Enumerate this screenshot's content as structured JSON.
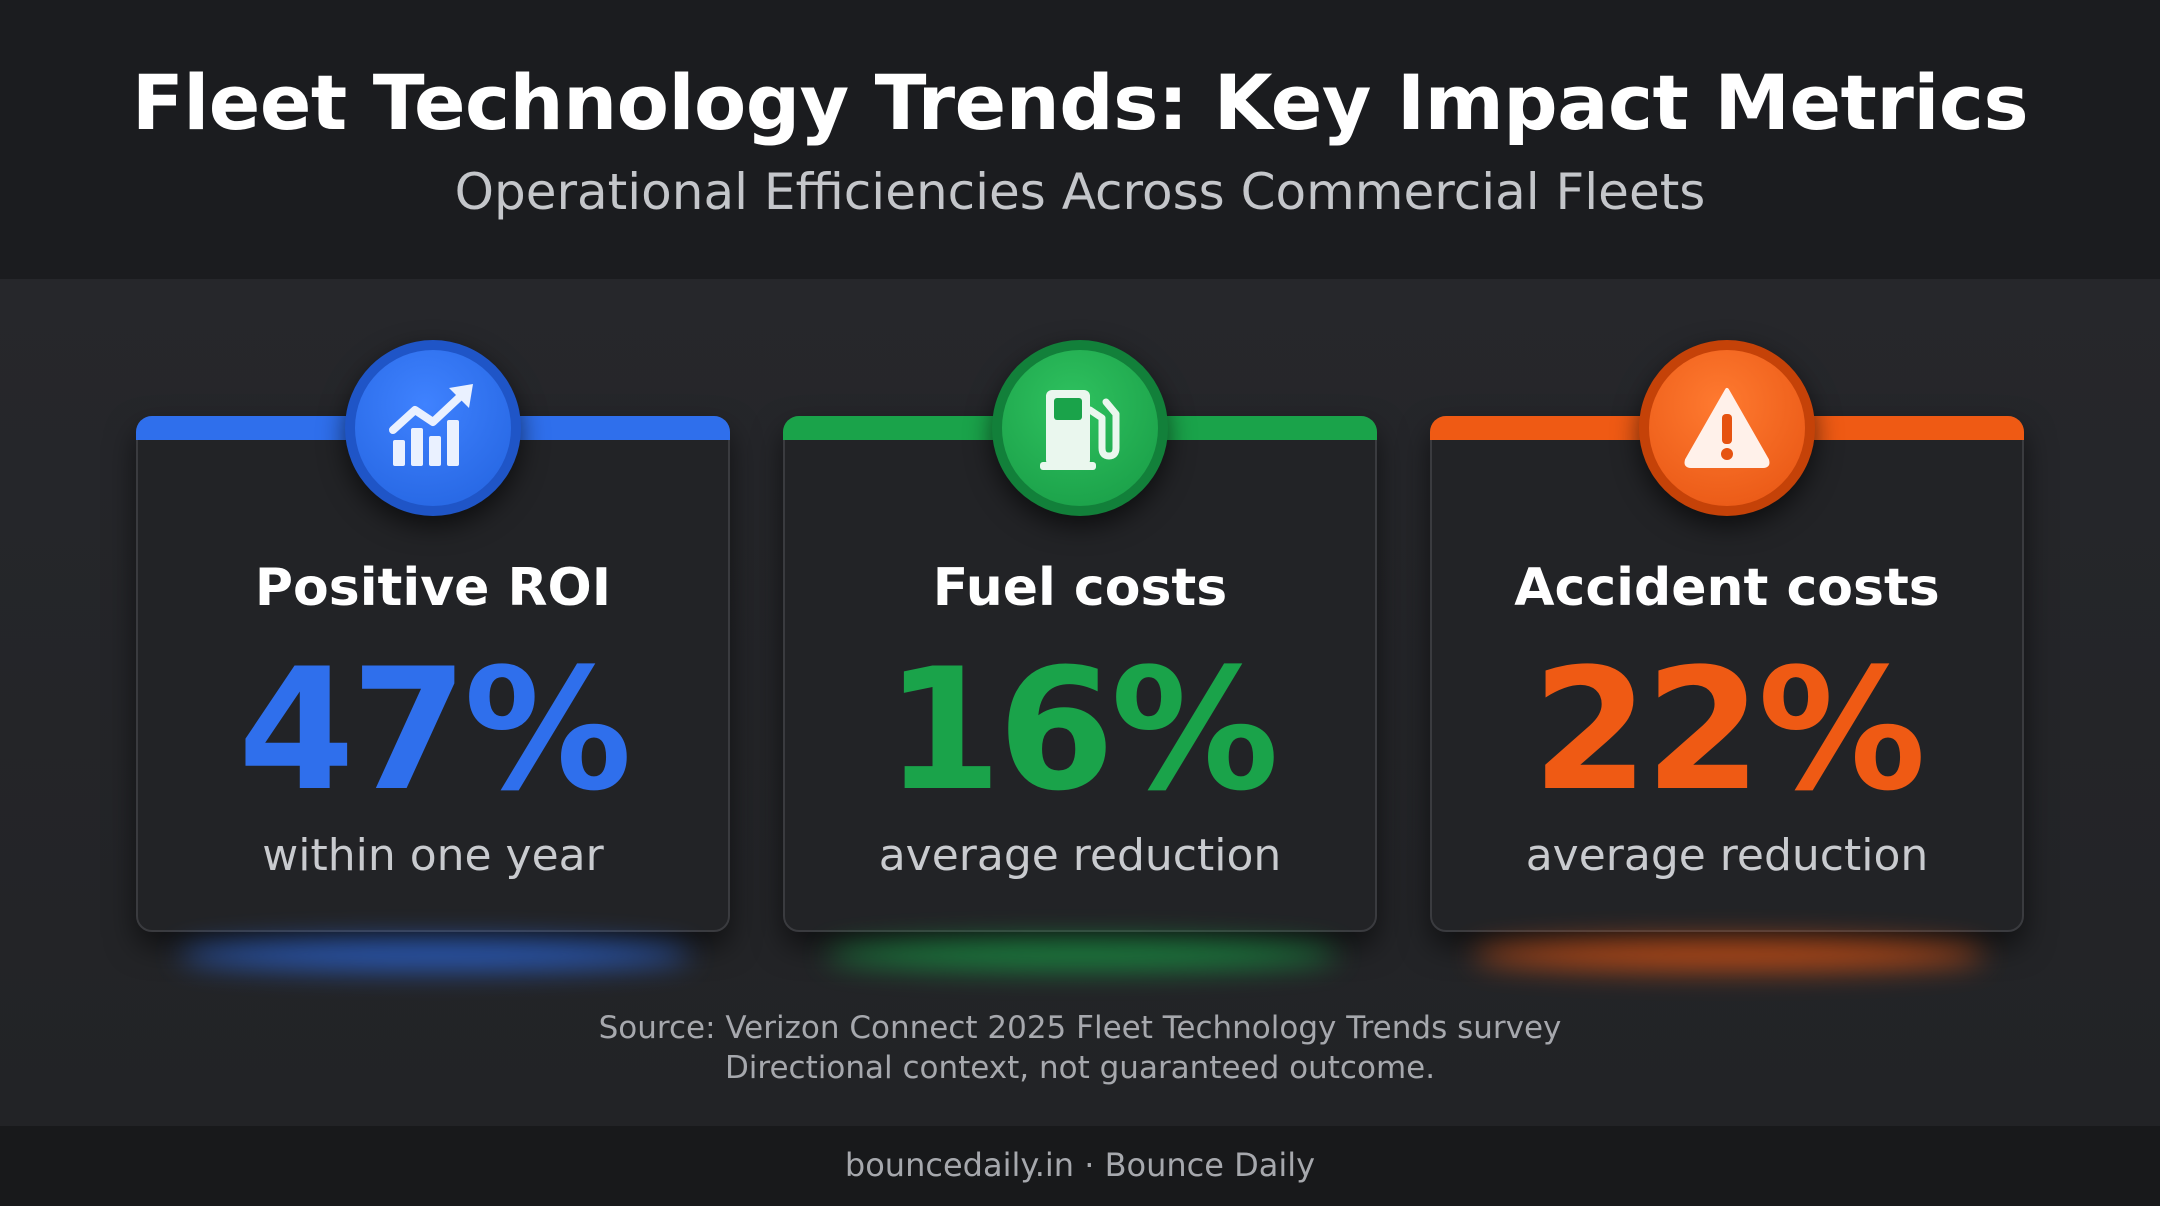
{
  "header": {
    "title": "Fleet Technology Trends: Key Impact Metrics",
    "subtitle": "Operational Efficiencies Across Commercial Fleets"
  },
  "cards": [
    {
      "icon": "trending-up-chart-icon",
      "label": "Positive ROI",
      "value": "47%",
      "caption": "within one year",
      "color": "#2f6fec"
    },
    {
      "icon": "fuel-pump-icon",
      "label": "Fuel costs",
      "value": "16%",
      "caption": "average reduction",
      "color": "#1aa34a"
    },
    {
      "icon": "warning-triangle-icon",
      "label": "Accident costs",
      "value": "22%",
      "caption": "average reduction",
      "color": "#ef5a14"
    }
  ],
  "source": {
    "line1": "Source: Verizon Connect 2025 Fleet Technology Trends survey",
    "line2": "Directional context, not guaranteed outcome."
  },
  "footer": {
    "text": "bouncedaily.in · Bounce Daily"
  }
}
